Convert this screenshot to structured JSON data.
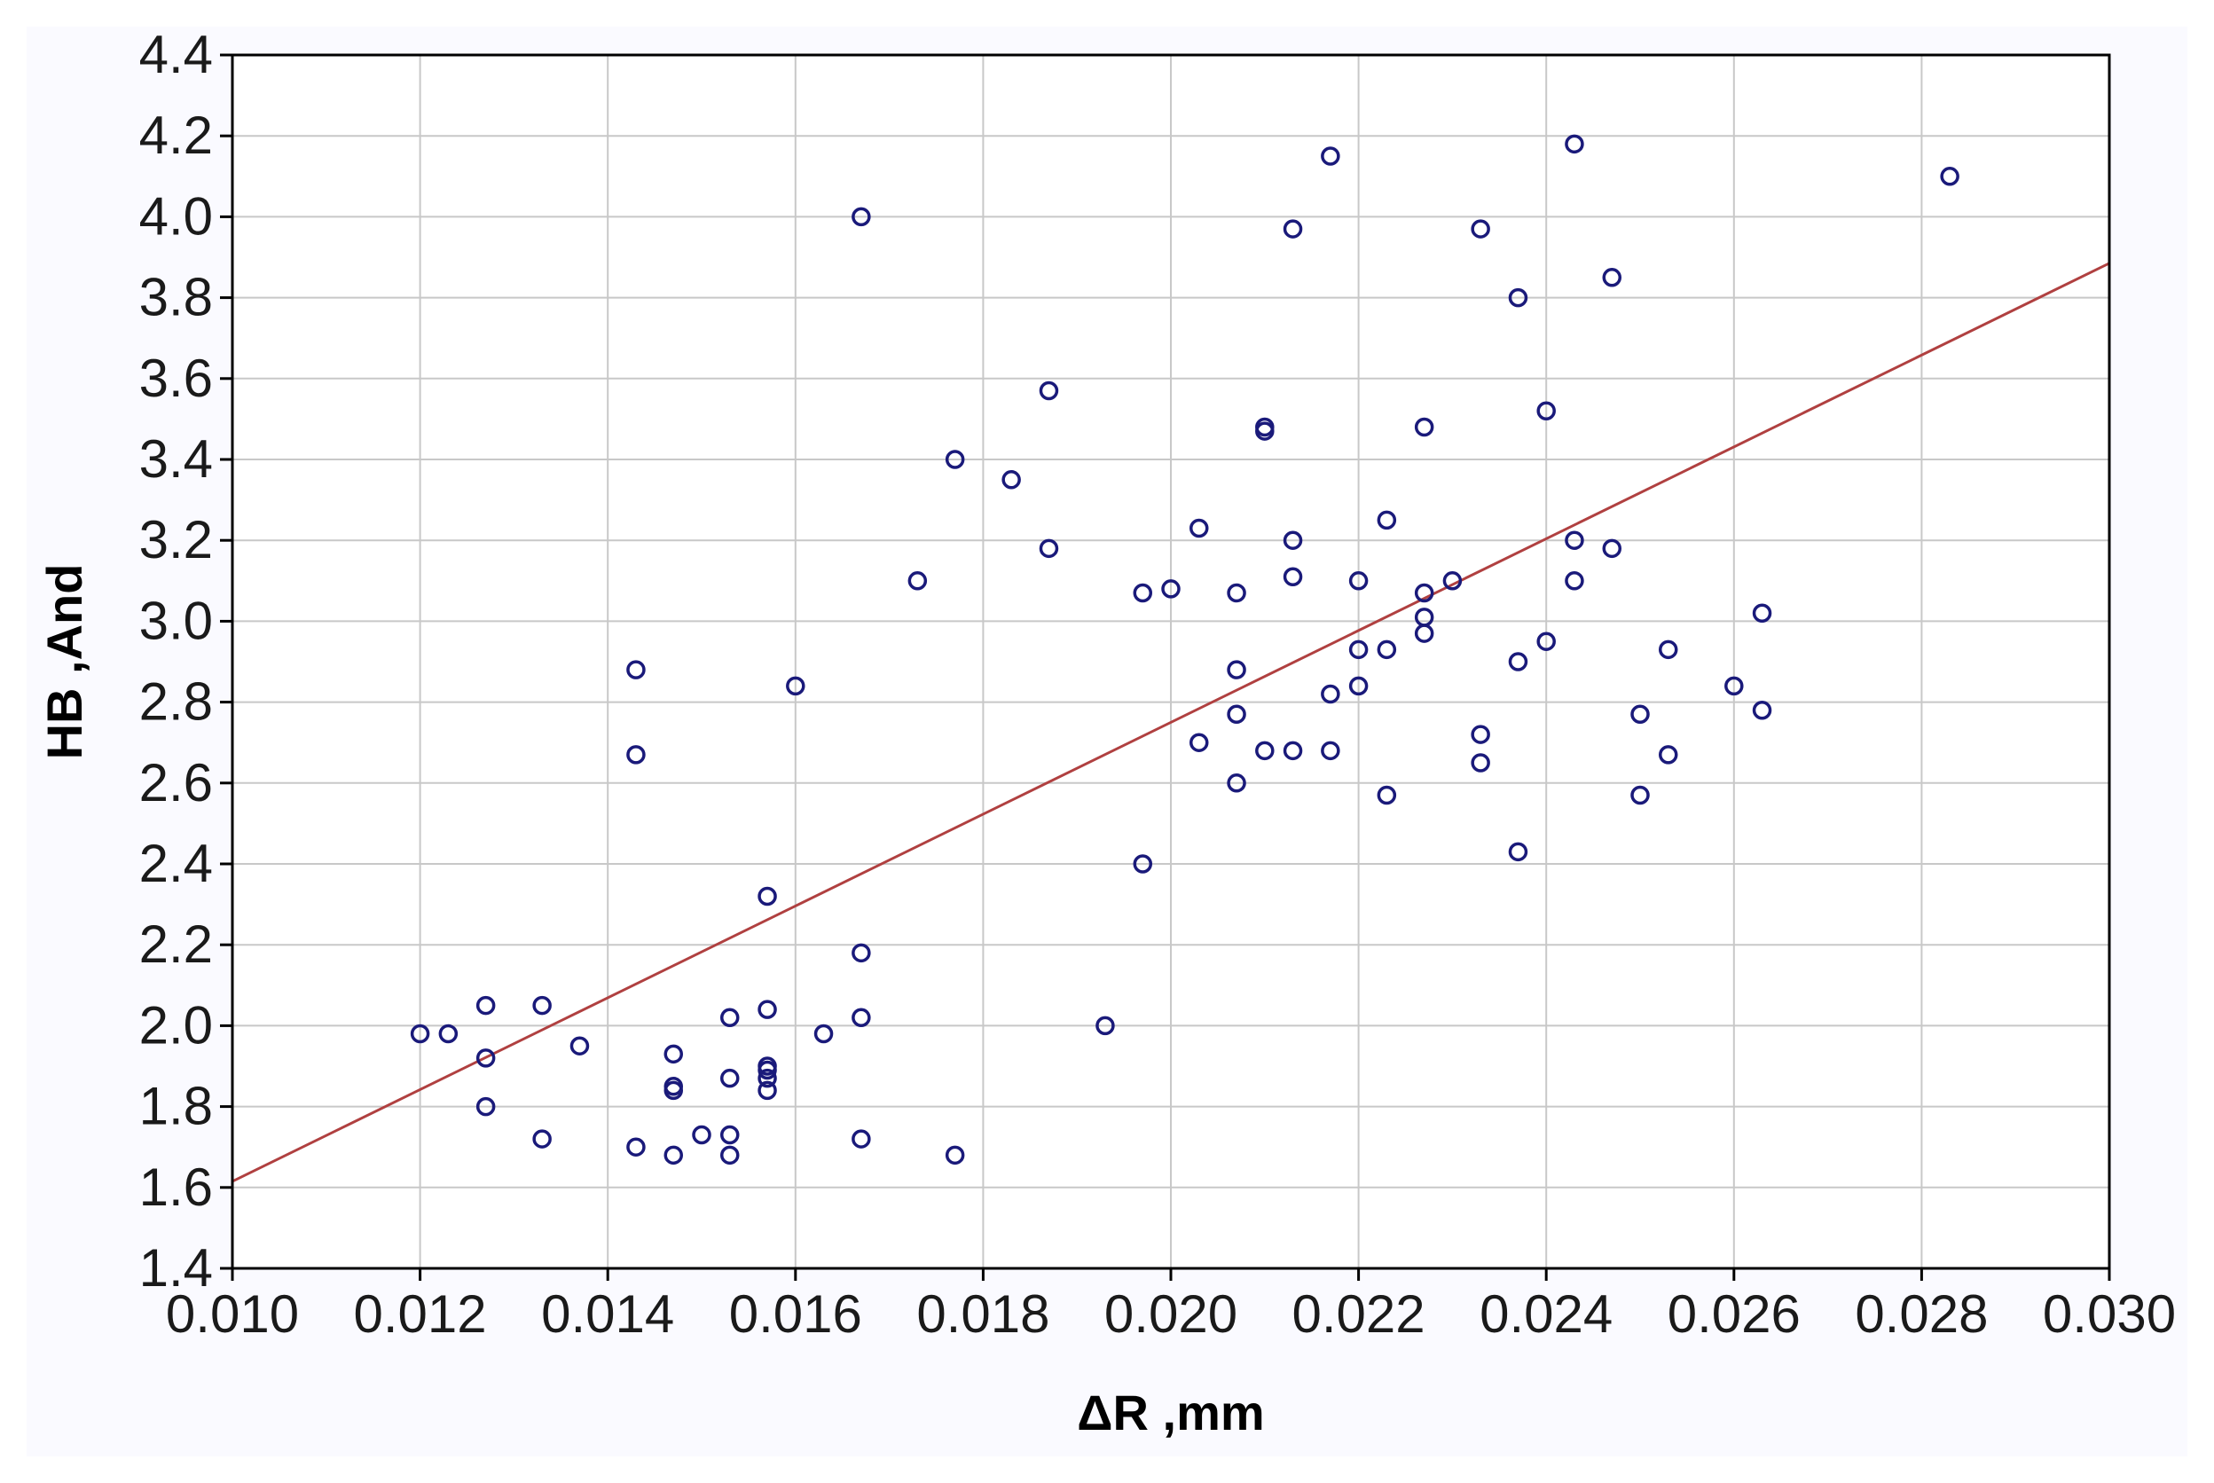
{
  "chart_data": {
    "type": "scatter",
    "xlabel": "ΔR ,mm",
    "ylabel": "HB ,And",
    "xlim": [
      0.01,
      0.03
    ],
    "ylim": [
      1.4,
      4.4
    ],
    "x_ticks": [
      "0.010",
      "0.012",
      "0.014",
      "0.016",
      "0.018",
      "0.020",
      "0.022",
      "0.024",
      "0.026",
      "0.028",
      "0.030"
    ],
    "y_ticks": [
      "1.4",
      "1.6",
      "1.8",
      "2.0",
      "2.2",
      "2.4",
      "2.6",
      "2.8",
      "3.0",
      "3.2",
      "3.4",
      "3.6",
      "3.8",
      "4.0",
      "4.2",
      "4.4"
    ],
    "grid": true,
    "point_color": "#1a1a7a",
    "line_color": "#b04040",
    "fit_line": {
      "x": [
        0.01,
        0.03
      ],
      "y": [
        1.615,
        3.885
      ]
    },
    "points": [
      [
        0.012,
        1.98
      ],
      [
        0.0123,
        1.98
      ],
      [
        0.0127,
        2.05
      ],
      [
        0.0127,
        1.92
      ],
      [
        0.0127,
        1.8
      ],
      [
        0.0133,
        2.05
      ],
      [
        0.0133,
        1.72
      ],
      [
        0.0137,
        1.95
      ],
      [
        0.0143,
        2.88
      ],
      [
        0.0143,
        2.67
      ],
      [
        0.0143,
        1.7
      ],
      [
        0.0147,
        1.93
      ],
      [
        0.0147,
        1.85
      ],
      [
        0.0147,
        1.84
      ],
      [
        0.0147,
        1.68
      ],
      [
        0.015,
        1.73
      ],
      [
        0.0153,
        2.02
      ],
      [
        0.0153,
        1.87
      ],
      [
        0.0153,
        1.73
      ],
      [
        0.0153,
        1.68
      ],
      [
        0.0157,
        2.32
      ],
      [
        0.0157,
        2.04
      ],
      [
        0.0157,
        1.9
      ],
      [
        0.0157,
        1.89
      ],
      [
        0.0157,
        1.87
      ],
      [
        0.0157,
        1.84
      ],
      [
        0.016,
        2.84
      ],
      [
        0.0163,
        1.98
      ],
      [
        0.0167,
        4.0
      ],
      [
        0.0167,
        2.18
      ],
      [
        0.0167,
        2.02
      ],
      [
        0.0167,
        1.72
      ],
      [
        0.0173,
        3.1
      ],
      [
        0.0177,
        3.4
      ],
      [
        0.0177,
        1.68
      ],
      [
        0.0183,
        3.35
      ],
      [
        0.0187,
        3.57
      ],
      [
        0.0187,
        3.18
      ],
      [
        0.0193,
        2.0
      ],
      [
        0.0197,
        3.07
      ],
      [
        0.0197,
        2.4
      ],
      [
        0.02,
        3.08
      ],
      [
        0.0203,
        3.23
      ],
      [
        0.0203,
        2.7
      ],
      [
        0.0207,
        3.07
      ],
      [
        0.0207,
        2.88
      ],
      [
        0.0207,
        2.77
      ],
      [
        0.0207,
        2.6
      ],
      [
        0.021,
        3.48
      ],
      [
        0.021,
        3.47
      ],
      [
        0.021,
        2.68
      ],
      [
        0.0213,
        3.97
      ],
      [
        0.0213,
        3.2
      ],
      [
        0.0213,
        3.11
      ],
      [
        0.0213,
        2.68
      ],
      [
        0.0217,
        4.15
      ],
      [
        0.0217,
        2.82
      ],
      [
        0.0217,
        2.68
      ],
      [
        0.022,
        3.1
      ],
      [
        0.022,
        2.93
      ],
      [
        0.022,
        2.84
      ],
      [
        0.0223,
        3.25
      ],
      [
        0.0223,
        2.93
      ],
      [
        0.0223,
        2.57
      ],
      [
        0.0227,
        3.48
      ],
      [
        0.0227,
        3.07
      ],
      [
        0.0227,
        3.01
      ],
      [
        0.0227,
        2.97
      ],
      [
        0.023,
        3.1
      ],
      [
        0.0233,
        3.97
      ],
      [
        0.0233,
        2.72
      ],
      [
        0.0233,
        2.65
      ],
      [
        0.0237,
        3.8
      ],
      [
        0.0237,
        2.9
      ],
      [
        0.0237,
        2.43
      ],
      [
        0.024,
        3.52
      ],
      [
        0.024,
        2.95
      ],
      [
        0.0243,
        4.18
      ],
      [
        0.0243,
        3.2
      ],
      [
        0.0243,
        3.1
      ],
      [
        0.0247,
        3.85
      ],
      [
        0.0247,
        3.18
      ],
      [
        0.025,
        2.77
      ],
      [
        0.025,
        2.57
      ],
      [
        0.0253,
        2.93
      ],
      [
        0.0253,
        2.67
      ],
      [
        0.026,
        2.84
      ],
      [
        0.0263,
        3.02
      ],
      [
        0.0263,
        2.78
      ],
      [
        0.0283,
        4.1
      ]
    ]
  }
}
